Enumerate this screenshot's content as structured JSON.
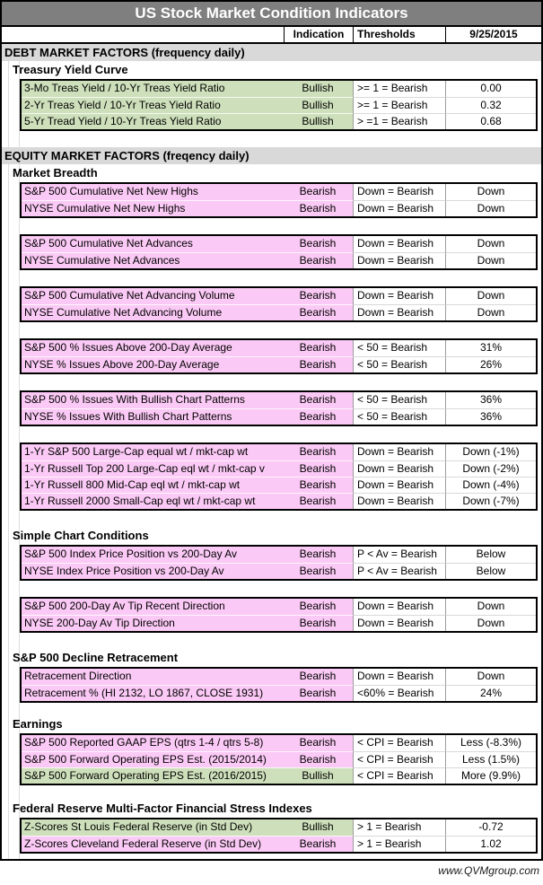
{
  "title": "US Stock Market Condition Indicators",
  "columns": {
    "indication": "Indication",
    "thresholds": "Thresholds",
    "date": "9/25/2015"
  },
  "footer": "www.QVMgroup.com",
  "colors": {
    "title_bar": "#7F7F7F",
    "section_band": "#D9D9D9",
    "bullish_green": "#CEE0BB",
    "bearish_pink": "#FBC9F5",
    "border_black": "#000000"
  },
  "sections": [
    {
      "kind": "band",
      "label": "DEBT MARKET FACTORS (frequency daily)"
    },
    {
      "kind": "subheader",
      "label": "Treasury Yield Curve"
    },
    {
      "kind": "block",
      "rows": [
        {
          "label": "3-Mo Treas Yield / 10-Yr Treas Yield Ratio",
          "indication": "Bullish",
          "threshold": ">= 1 = Bearish",
          "value": "0.00",
          "tone": "bullish"
        },
        {
          "label": "2-Yr Treas Yield / 10-Yr Treas Yield Ratio",
          "indication": "Bullish",
          "threshold": ">= 1 = Bearish",
          "value": "0.32",
          "tone": "bullish"
        },
        {
          "label": "5-Yr Tread Yield / 10-Yr Treas Yield Ratio",
          "indication": "Bullish",
          "threshold": "> =1 = Bearish",
          "value": "0.68",
          "tone": "bullish"
        }
      ]
    },
    {
      "kind": "spacer",
      "h": 18
    },
    {
      "kind": "band",
      "label": "EQUITY MARKET FACTORS (freqency daily)"
    },
    {
      "kind": "subheader",
      "label": "Market Breadth"
    },
    {
      "kind": "block",
      "rows": [
        {
          "label": "S&P 500 Cumulative Net New Highs",
          "indication": "Bearish",
          "threshold": "Down = Bearish",
          "value": "Down",
          "tone": "bearish"
        },
        {
          "label": "NYSE Cumulative Net New Highs",
          "indication": "Bearish",
          "threshold": "Down = Bearish",
          "value": "Down",
          "tone": "bearish"
        }
      ]
    },
    {
      "kind": "spacer",
      "h": 18
    },
    {
      "kind": "block",
      "rows": [
        {
          "label": "S&P 500 Cumulative Net Advances",
          "indication": "Bearish",
          "threshold": "Down = Bearish",
          "value": "Down",
          "tone": "bearish"
        },
        {
          "label": "NYSE Cumulative Net Advances",
          "indication": "Bearish",
          "threshold": "Down = Bearish",
          "value": "Down",
          "tone": "bearish"
        }
      ]
    },
    {
      "kind": "spacer",
      "h": 18
    },
    {
      "kind": "block",
      "rows": [
        {
          "label": "S&P 500 Cumulative Net Advancing Volume",
          "indication": "Bearish",
          "threshold": "Down = Bearish",
          "value": "Down",
          "tone": "bearish"
        },
        {
          "label": "NYSE Cumulative Net Advancing Volume",
          "indication": "Bearish",
          "threshold": "Down = Bearish",
          "value": "Down",
          "tone": "bearish"
        }
      ]
    },
    {
      "kind": "spacer",
      "h": 18
    },
    {
      "kind": "block",
      "rows": [
        {
          "label": "S&P 500 % Issues Above 200-Day Average",
          "indication": "Bearish",
          "threshold": "< 50 = Bearish",
          "value": "31%",
          "tone": "bearish"
        },
        {
          "label": "NYSE % Issues Above 200-Day Average",
          "indication": "Bearish",
          "threshold": "< 50 = Bearish",
          "value": "26%",
          "tone": "bearish"
        }
      ]
    },
    {
      "kind": "spacer",
      "h": 18
    },
    {
      "kind": "block",
      "rows": [
        {
          "label": "S&P 500 % Issues With Bullish Chart Patterns",
          "indication": "Bearish",
          "threshold": "< 50 = Bearish",
          "value": "36%",
          "tone": "bearish"
        },
        {
          "label": "NYSE % Issues With Bullish Chart Patterns",
          "indication": "Bearish",
          "threshold": "< 50 = Bearish",
          "value": "36%",
          "tone": "bearish"
        }
      ]
    },
    {
      "kind": "spacer",
      "h": 18
    },
    {
      "kind": "block",
      "rows": [
        {
          "label": "1-Yr S&P 500 Large-Cap equal wt / mkt-cap wt",
          "indication": "Bearish",
          "threshold": "Down = Bearish",
          "value": "Down (-1%)",
          "tone": "bearish"
        },
        {
          "label": "1-Yr Russell Top 200 Large-Cap eql wt / mkt-cap v",
          "indication": "Bearish",
          "threshold": "Down = Bearish",
          "value": "Down (-2%)",
          "tone": "bearish"
        },
        {
          "label": "1-Yr Russell 800 Mid-Cap eql wt / mkt-cap wt",
          "indication": "Bearish",
          "threshold": "Down = Bearish",
          "value": "Down (-4%)",
          "tone": "bearish"
        },
        {
          "label": "1-Yr Russell 2000 Small-Cap eql wt / mkt-cap wt",
          "indication": "Bearish",
          "threshold": "Down = Bearish",
          "value": "Down (-7%)",
          "tone": "bearish"
        }
      ]
    },
    {
      "kind": "spacer",
      "h": 18
    },
    {
      "kind": "subheader",
      "label": "Simple Chart Conditions"
    },
    {
      "kind": "block",
      "rows": [
        {
          "label": "S&P 500 Index Price Position vs 200-Day Av",
          "indication": "Bearish",
          "threshold": "P < Av = Bearish",
          "value": "Below",
          "tone": "bearish"
        },
        {
          "label": "NYSE Index Price Position vs 200-Day Av",
          "indication": "Bearish",
          "threshold": "P < Av = Bearish",
          "value": "Below",
          "tone": "bearish"
        }
      ]
    },
    {
      "kind": "spacer",
      "h": 18
    },
    {
      "kind": "block",
      "rows": [
        {
          "label": "S&P 500 200-Day Av Tip Recent Direction",
          "indication": "Bearish",
          "threshold": "Down = Bearish",
          "value": "Down",
          "tone": "bearish"
        },
        {
          "label": "NYSE 200-Day Av Tip Direction",
          "indication": "Bearish",
          "threshold": "Down = Bearish",
          "value": "Down",
          "tone": "bearish"
        }
      ]
    },
    {
      "kind": "spacer",
      "h": 18
    },
    {
      "kind": "subheader",
      "label": "S&P 500 Decline Retracement"
    },
    {
      "kind": "block",
      "rows": [
        {
          "label": "Retracement Direction",
          "indication": "Bearish",
          "threshold": "Down = Bearish",
          "value": "Down",
          "tone": "bearish"
        },
        {
          "label": "Retracement % (HI 2132, LO 1867, CLOSE 1931)",
          "indication": "Bearish",
          "threshold": "<60% = Bearish",
          "value": "24%",
          "tone": "bearish"
        }
      ]
    },
    {
      "kind": "spacer",
      "h": 14
    },
    {
      "kind": "subheader",
      "label": "Earnings"
    },
    {
      "kind": "block",
      "rows": [
        {
          "label": "S&P 500 Reported GAAP EPS  (qtrs 1-4 / qtrs 5-8)",
          "indication": "Bearish",
          "threshold": "< CPI = Bearish",
          "value": "Less (-8.3%)",
          "tone": "bearish"
        },
        {
          "label": "S&P 500 Forward Operating EPS  Est. (2015/2014)",
          "indication": "Bearish",
          "threshold": "< CPI = Bearish",
          "value": "Less (1.5%)",
          "tone": "bearish"
        },
        {
          "label": "S&P 500 Forward Operating EPS  Est. (2016/2015)",
          "indication": "Bullish",
          "threshold": "< CPI = Bearish",
          "value": "More (9.9%)",
          "tone": "bullish"
        }
      ]
    },
    {
      "kind": "spacer",
      "h": 16
    },
    {
      "kind": "subheader",
      "label": "Federal Reserve Multi-Factor Financial Stress Indexes"
    },
    {
      "kind": "block",
      "rows": [
        {
          "label": "Z-Scores St Louis Federal Reserve (in Std Dev)",
          "indication": "Bullish",
          "threshold": "> 1 = Bearish",
          "value": "-0.72",
          "tone": "bullish"
        },
        {
          "label": "Z-Scores Cleveland Federal Reserve (in Std Dev)",
          "indication": "Bearish",
          "threshold": "> 1 = Bearish",
          "value": "1.02",
          "tone": "bearish"
        }
      ]
    },
    {
      "kind": "spacer",
      "h": 6
    }
  ]
}
